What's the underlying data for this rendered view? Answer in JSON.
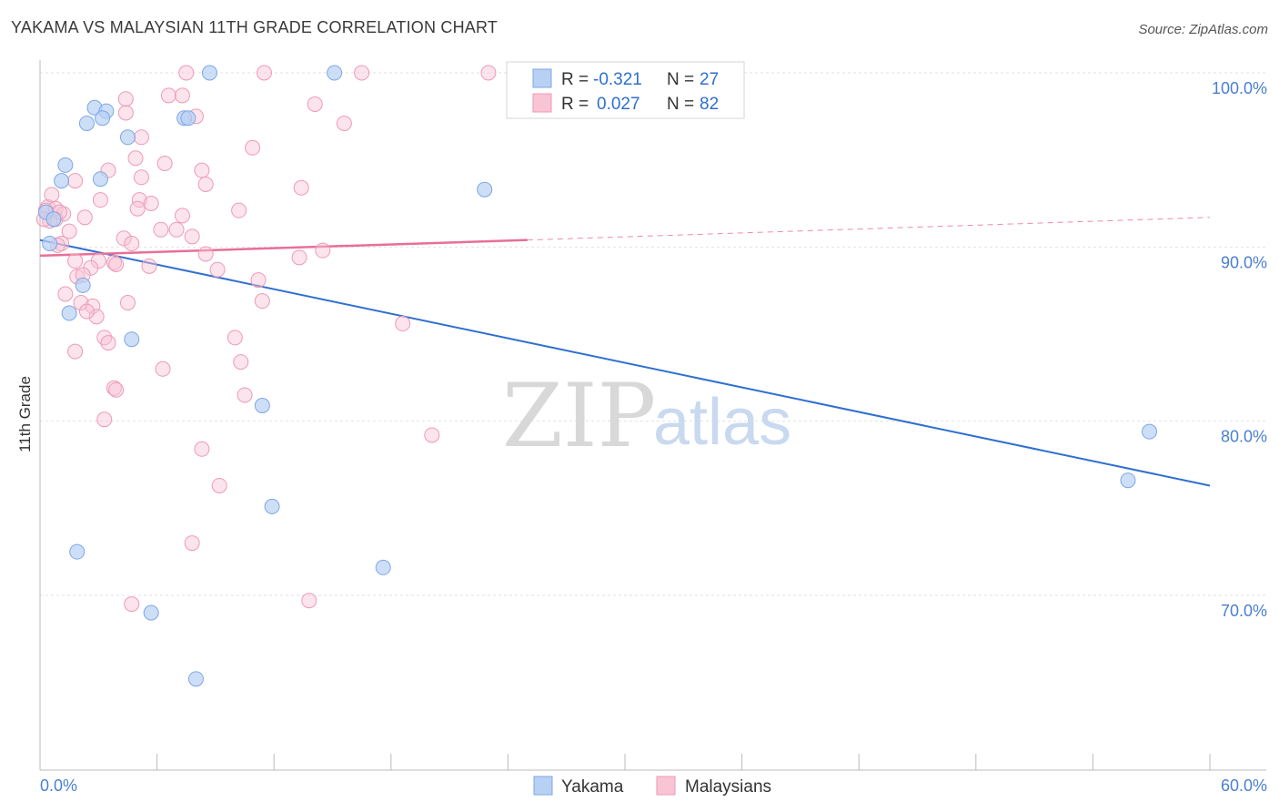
{
  "header": {
    "title": "YAKAMA VS MALAYSIAN 11TH GRADE CORRELATION CHART",
    "source": "Source: ZipAtlas.com"
  },
  "watermark": {
    "zip": "ZIP",
    "atlas": "atlas"
  },
  "colors": {
    "yakama_fill": "#b8d0f3",
    "yakama_stroke": "#7ea7e6",
    "yakama_line": "#2f6fd0",
    "malay_fill": "#f9c4d4",
    "malay_stroke": "#ee9ab5",
    "malay_line": "#e86f98",
    "grid": "#e2e2e2",
    "axis": "#bbbbbb"
  },
  "legend": {
    "rows": [
      {
        "r_label": "R =",
        "r_value": "-0.321",
        "n_label": "N =",
        "n_value": "27"
      },
      {
        "r_label": "R =",
        "r_value": "0.027",
        "n_label": "N =",
        "n_value": "82"
      }
    ]
  },
  "chart_data": {
    "type": "scatter",
    "title": "YAKAMA VS MALAYSIAN 11TH GRADE CORRELATION CHART",
    "xlabel": "",
    "ylabel": "11th Grade",
    "xlim": [
      0,
      60
    ],
    "ylim": [
      60.5,
      102
    ],
    "x_tick_labels": [
      "0.0%",
      "60.0%"
    ],
    "y_ticks": [
      100,
      90,
      80,
      70
    ],
    "y_tick_labels": [
      "100.0%",
      "90.0%",
      "80.0%",
      "70.0%"
    ],
    "x_minor_ticks": [
      0,
      6,
      12,
      18,
      24,
      30,
      36,
      42,
      48,
      54,
      60
    ],
    "bottom_legend": [
      "Yakama",
      "Malaysians"
    ],
    "series": [
      {
        "name": "Yakama",
        "points": [
          [
            8.7,
            100
          ],
          [
            15.1,
            100
          ],
          [
            2.8,
            98.0
          ],
          [
            3.4,
            97.8
          ],
          [
            2.4,
            97.1
          ],
          [
            3.2,
            97.4
          ],
          [
            7.4,
            97.4
          ],
          [
            7.6,
            97.4
          ],
          [
            4.5,
            96.3
          ],
          [
            1.3,
            94.7
          ],
          [
            3.1,
            93.9
          ],
          [
            1.1,
            93.8
          ],
          [
            22.8,
            93.3
          ],
          [
            0.3,
            92.0
          ],
          [
            0.7,
            91.6
          ],
          [
            0.5,
            90.2
          ],
          [
            2.2,
            87.8
          ],
          [
            1.5,
            86.2
          ],
          [
            4.7,
            84.7
          ],
          [
            11.4,
            80.9
          ],
          [
            56.9,
            79.4
          ],
          [
            55.8,
            76.6
          ],
          [
            11.9,
            75.1
          ],
          [
            1.9,
            72.5
          ],
          [
            17.6,
            71.6
          ],
          [
            5.7,
            69.0
          ],
          [
            8.0,
            65.2
          ]
        ],
        "trend": {
          "x": [
            0,
            60
          ],
          "y": [
            90.4,
            76.3
          ]
        }
      },
      {
        "name": "Malaysians",
        "points": [
          [
            7.5,
            100
          ],
          [
            11.5,
            100
          ],
          [
            16.5,
            100
          ],
          [
            23.0,
            100
          ],
          [
            4.4,
            98.5
          ],
          [
            6.6,
            98.7
          ],
          [
            7.3,
            98.7
          ],
          [
            14.1,
            98.2
          ],
          [
            4.4,
            97.7
          ],
          [
            8.0,
            97.5
          ],
          [
            15.6,
            97.1
          ],
          [
            5.2,
            96.3
          ],
          [
            10.9,
            95.7
          ],
          [
            4.9,
            95.1
          ],
          [
            6.4,
            94.8
          ],
          [
            3.5,
            94.4
          ],
          [
            8.3,
            94.4
          ],
          [
            5.2,
            94.0
          ],
          [
            1.8,
            93.8
          ],
          [
            8.5,
            93.6
          ],
          [
            13.4,
            93.4
          ],
          [
            3.1,
            92.7
          ],
          [
            5.1,
            92.7
          ],
          [
            5.7,
            92.5
          ],
          [
            0.4,
            92.3
          ],
          [
            0.3,
            92.1
          ],
          [
            0.8,
            92.2
          ],
          [
            1.2,
            91.9
          ],
          [
            10.2,
            92.1
          ],
          [
            2.3,
            91.7
          ],
          [
            7.3,
            91.8
          ],
          [
            0.5,
            91.5
          ],
          [
            0.8,
            91.6
          ],
          [
            4.3,
            90.5
          ],
          [
            7.8,
            90.6
          ],
          [
            4.7,
            90.2
          ],
          [
            1.5,
            90.9
          ],
          [
            6.2,
            91.0
          ],
          [
            1.1,
            90.2
          ],
          [
            0.9,
            90.1
          ],
          [
            8.5,
            89.6
          ],
          [
            13.3,
            89.4
          ],
          [
            14.5,
            89.8
          ],
          [
            1.8,
            89.2
          ],
          [
            3.0,
            89.2
          ],
          [
            3.8,
            89.1
          ],
          [
            5.6,
            88.9
          ],
          [
            2.6,
            88.8
          ],
          [
            9.1,
            88.7
          ],
          [
            1.9,
            88.3
          ],
          [
            11.2,
            88.1
          ],
          [
            1.3,
            87.3
          ],
          [
            2.1,
            86.8
          ],
          [
            4.5,
            86.8
          ],
          [
            11.4,
            86.9
          ],
          [
            2.7,
            86.6
          ],
          [
            2.9,
            86.0
          ],
          [
            2.4,
            86.3
          ],
          [
            18.6,
            85.6
          ],
          [
            3.3,
            84.8
          ],
          [
            10.0,
            84.8
          ],
          [
            3.5,
            84.5
          ],
          [
            1.8,
            84.0
          ],
          [
            10.3,
            83.4
          ],
          [
            6.3,
            83.0
          ],
          [
            3.8,
            81.9
          ],
          [
            3.9,
            81.8
          ],
          [
            10.5,
            81.5
          ],
          [
            3.3,
            80.1
          ],
          [
            20.1,
            79.2
          ],
          [
            8.3,
            78.4
          ],
          [
            9.2,
            76.3
          ],
          [
            7.8,
            73.0
          ],
          [
            4.7,
            69.5
          ],
          [
            13.8,
            69.7
          ],
          [
            2.2,
            88.4
          ],
          [
            5.0,
            92.2
          ],
          [
            0.2,
            91.6
          ],
          [
            3.9,
            89.0
          ],
          [
            7.0,
            91.0
          ],
          [
            0.6,
            93.0
          ],
          [
            1.0,
            92.0
          ]
        ],
        "trend": {
          "x": [
            0,
            25
          ],
          "y": [
            89.5,
            90.4
          ]
        },
        "trend_extension": {
          "x": [
            25,
            60
          ],
          "y": [
            90.4,
            91.7
          ]
        }
      }
    ]
  }
}
